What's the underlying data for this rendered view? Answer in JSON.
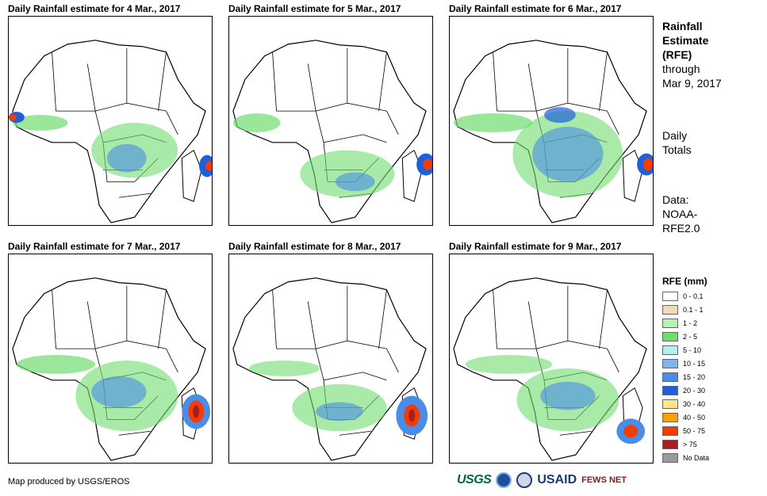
{
  "panels": [
    {
      "title": "Daily Rainfall estimate for 4 Mar., 2017"
    },
    {
      "title": "Daily Rainfall estimate for 5 Mar., 2017"
    },
    {
      "title": "Daily Rainfall estimate for 6 Mar., 2017"
    },
    {
      "title": "Daily Rainfall estimate for 7 Mar., 2017"
    },
    {
      "title": "Daily Rainfall estimate for 8 Mar., 2017"
    },
    {
      "title": "Daily Rainfall estimate for 9 Mar., 2017"
    }
  ],
  "sidebar": {
    "title_line1": "Rainfall",
    "title_line2": "Estimate",
    "title_line3": "(RFE)",
    "through": "through",
    "date": "Mar 9, 2017",
    "daily1": "Daily",
    "daily2": "Totals",
    "data1": "Data:",
    "data2": "NOAA-",
    "data3": "RFE2.0"
  },
  "legend": {
    "title": "RFE (mm)",
    "items": [
      {
        "label": "0 - 0.1",
        "color": "#ffffff"
      },
      {
        "label": "0.1 - 1",
        "color": "#eedbb7"
      },
      {
        "label": "1 - 2",
        "color": "#b9f0b0"
      },
      {
        "label": "2 - 5",
        "color": "#6fdc6f"
      },
      {
        "label": "5 - 10",
        "color": "#b3efef"
      },
      {
        "label": "10 - 15",
        "color": "#7fb4ec"
      },
      {
        "label": "15 - 20",
        "color": "#4a8ce6"
      },
      {
        "label": "20 - 30",
        "color": "#1f5fd9"
      },
      {
        "label": "30 - 40",
        "color": "#fde58e"
      },
      {
        "label": "40 - 50",
        "color": "#f5a300"
      },
      {
        "label": "50 - 75",
        "color": "#f23c00"
      },
      {
        "label": "> 75",
        "color": "#a81e1e"
      },
      {
        "label": "No Data",
        "color": "#9a9a9a"
      }
    ]
  },
  "credit": "Map produced by USGS/EROS",
  "logos": {
    "usgs": "USGS",
    "usaid": "USAID",
    "fews": "FEWS NET"
  }
}
